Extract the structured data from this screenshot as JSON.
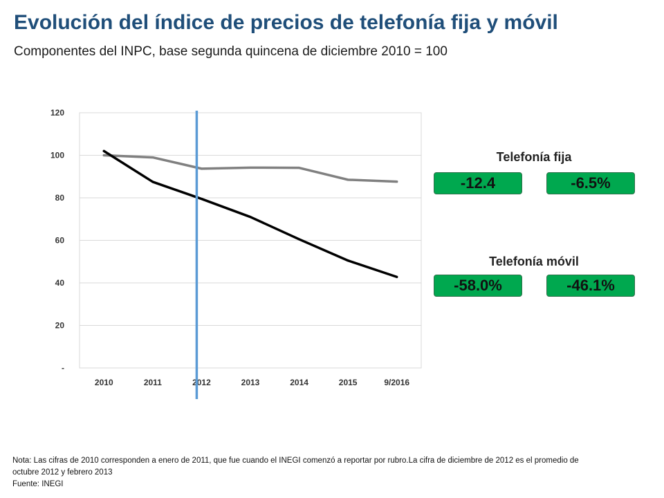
{
  "title": "Evolución del índice de precios de telefonía fija y móvil",
  "subtitle": "Componentes del INPC, base segunda quincena de diciembre 2010 = 100",
  "kpis": {
    "fija": {
      "label": "Telefonía fija",
      "value_a": "-12.4",
      "value_b": "-6.5%"
    },
    "movil": {
      "label": "Telefonía móvil",
      "value_a": "-58.0%",
      "value_b": "-46.1%"
    }
  },
  "notes": {
    "nota": "Nota: Las cifras de 2010 corresponden a enero de 2011, que fue cuando el INEGI comenzó a reportar por rubro.La cifra de diciembre de 2012 es el promedio de octubre 2012 y febrero 2013",
    "fuente": "Fuente: INEGI"
  },
  "colors": {
    "title": "#1f4e79",
    "kpi_green": "#00a84f",
    "fija_line": "#808080",
    "movil_line": "#000000",
    "marker_line": "#5b9bd5",
    "grid": "#d9d9d9"
  },
  "chart_data": {
    "type": "line",
    "categories": [
      "2010",
      "2011",
      "2012",
      "2013",
      "2014",
      "2015",
      "9/2016"
    ],
    "series": [
      {
        "key": "fija",
        "values": [
          100,
          99,
          93.7,
          94.2,
          94.1,
          88.5,
          87.6
        ],
        "color": "#808080"
      },
      {
        "key": "movil",
        "values": [
          102,
          87.5,
          79.5,
          71,
          60.5,
          50.5,
          42.8
        ],
        "color": "#000000"
      }
    ],
    "yticks": [
      0,
      20,
      40,
      60,
      80,
      100,
      120
    ],
    "ytick_labels": [
      "-",
      "20",
      "40",
      "60",
      "80",
      "100",
      "120"
    ],
    "ylim": [
      0,
      120
    ],
    "grid": true,
    "marker_at": "2012",
    "title": "",
    "xlabel": "",
    "ylabel": ""
  }
}
